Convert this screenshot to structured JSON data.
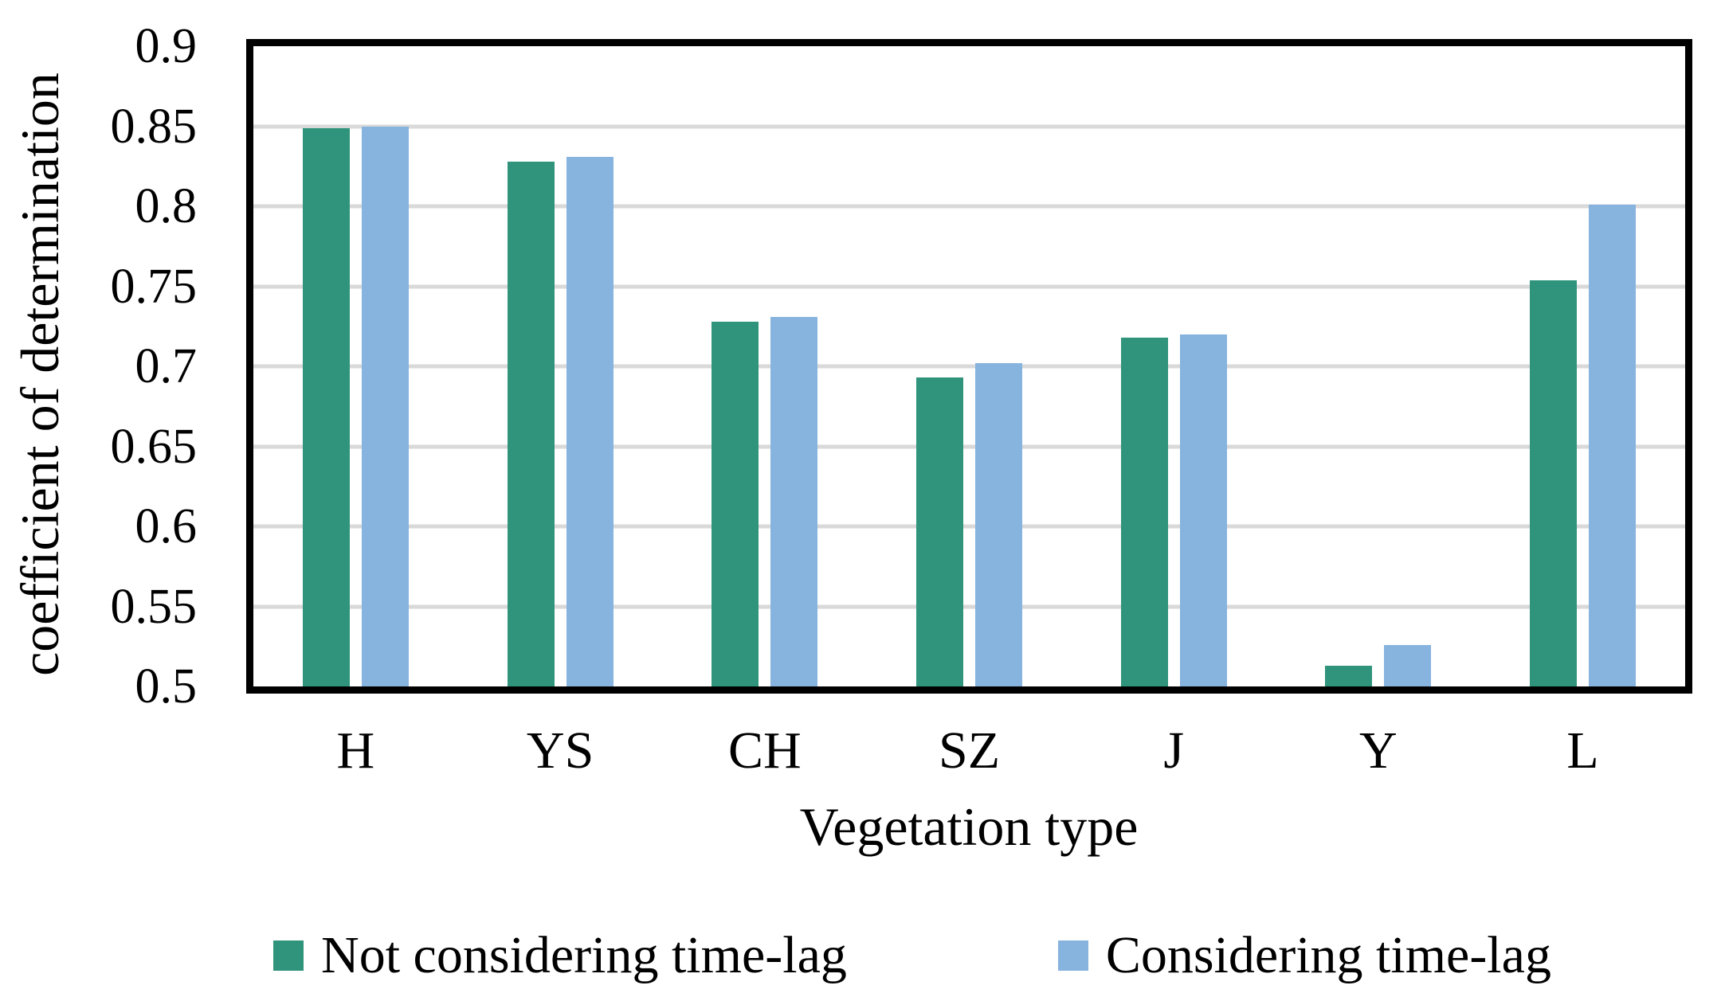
{
  "figure": {
    "background": "#FFFFFF",
    "frame_color": "#000000",
    "gridline_color": "#D9D9D9"
  },
  "y_axis": {
    "title": "coefficient of determination",
    "tick_labels": [
      "0.9",
      "0.85",
      "0.8",
      "0.75",
      "0.7",
      "0.65",
      "0.6",
      "0.55",
      "0.5"
    ],
    "min": 0.5,
    "max": 0.9,
    "tick_step": 0.05
  },
  "x_axis": {
    "title": "Vegetation type"
  },
  "legend": {
    "items": [
      {
        "label": "Not considering time-lag",
        "color": "#2F947B"
      },
      {
        "label": "Considering time-lag",
        "color": "#87B3DF"
      }
    ]
  },
  "chart_data": {
    "type": "bar",
    "categories": [
      "H",
      "YS",
      "CH",
      "SZ",
      "J",
      "Y",
      "L"
    ],
    "series": [
      {
        "name": "Not considering time-lag",
        "color": "#2F947B",
        "values": [
          0.849,
          0.828,
          0.728,
          0.693,
          0.718,
          0.513,
          0.754
        ]
      },
      {
        "name": "Considering time-lag",
        "color": "#87B3DF",
        "values": [
          0.85,
          0.831,
          0.731,
          0.702,
          0.72,
          0.526,
          0.801
        ]
      }
    ],
    "title": "",
    "xlabel": "Vegetation type",
    "ylabel": "coefficient of determination",
    "ylim": [
      0.5,
      0.9
    ],
    "grid": true,
    "legend_position": "bottom"
  }
}
